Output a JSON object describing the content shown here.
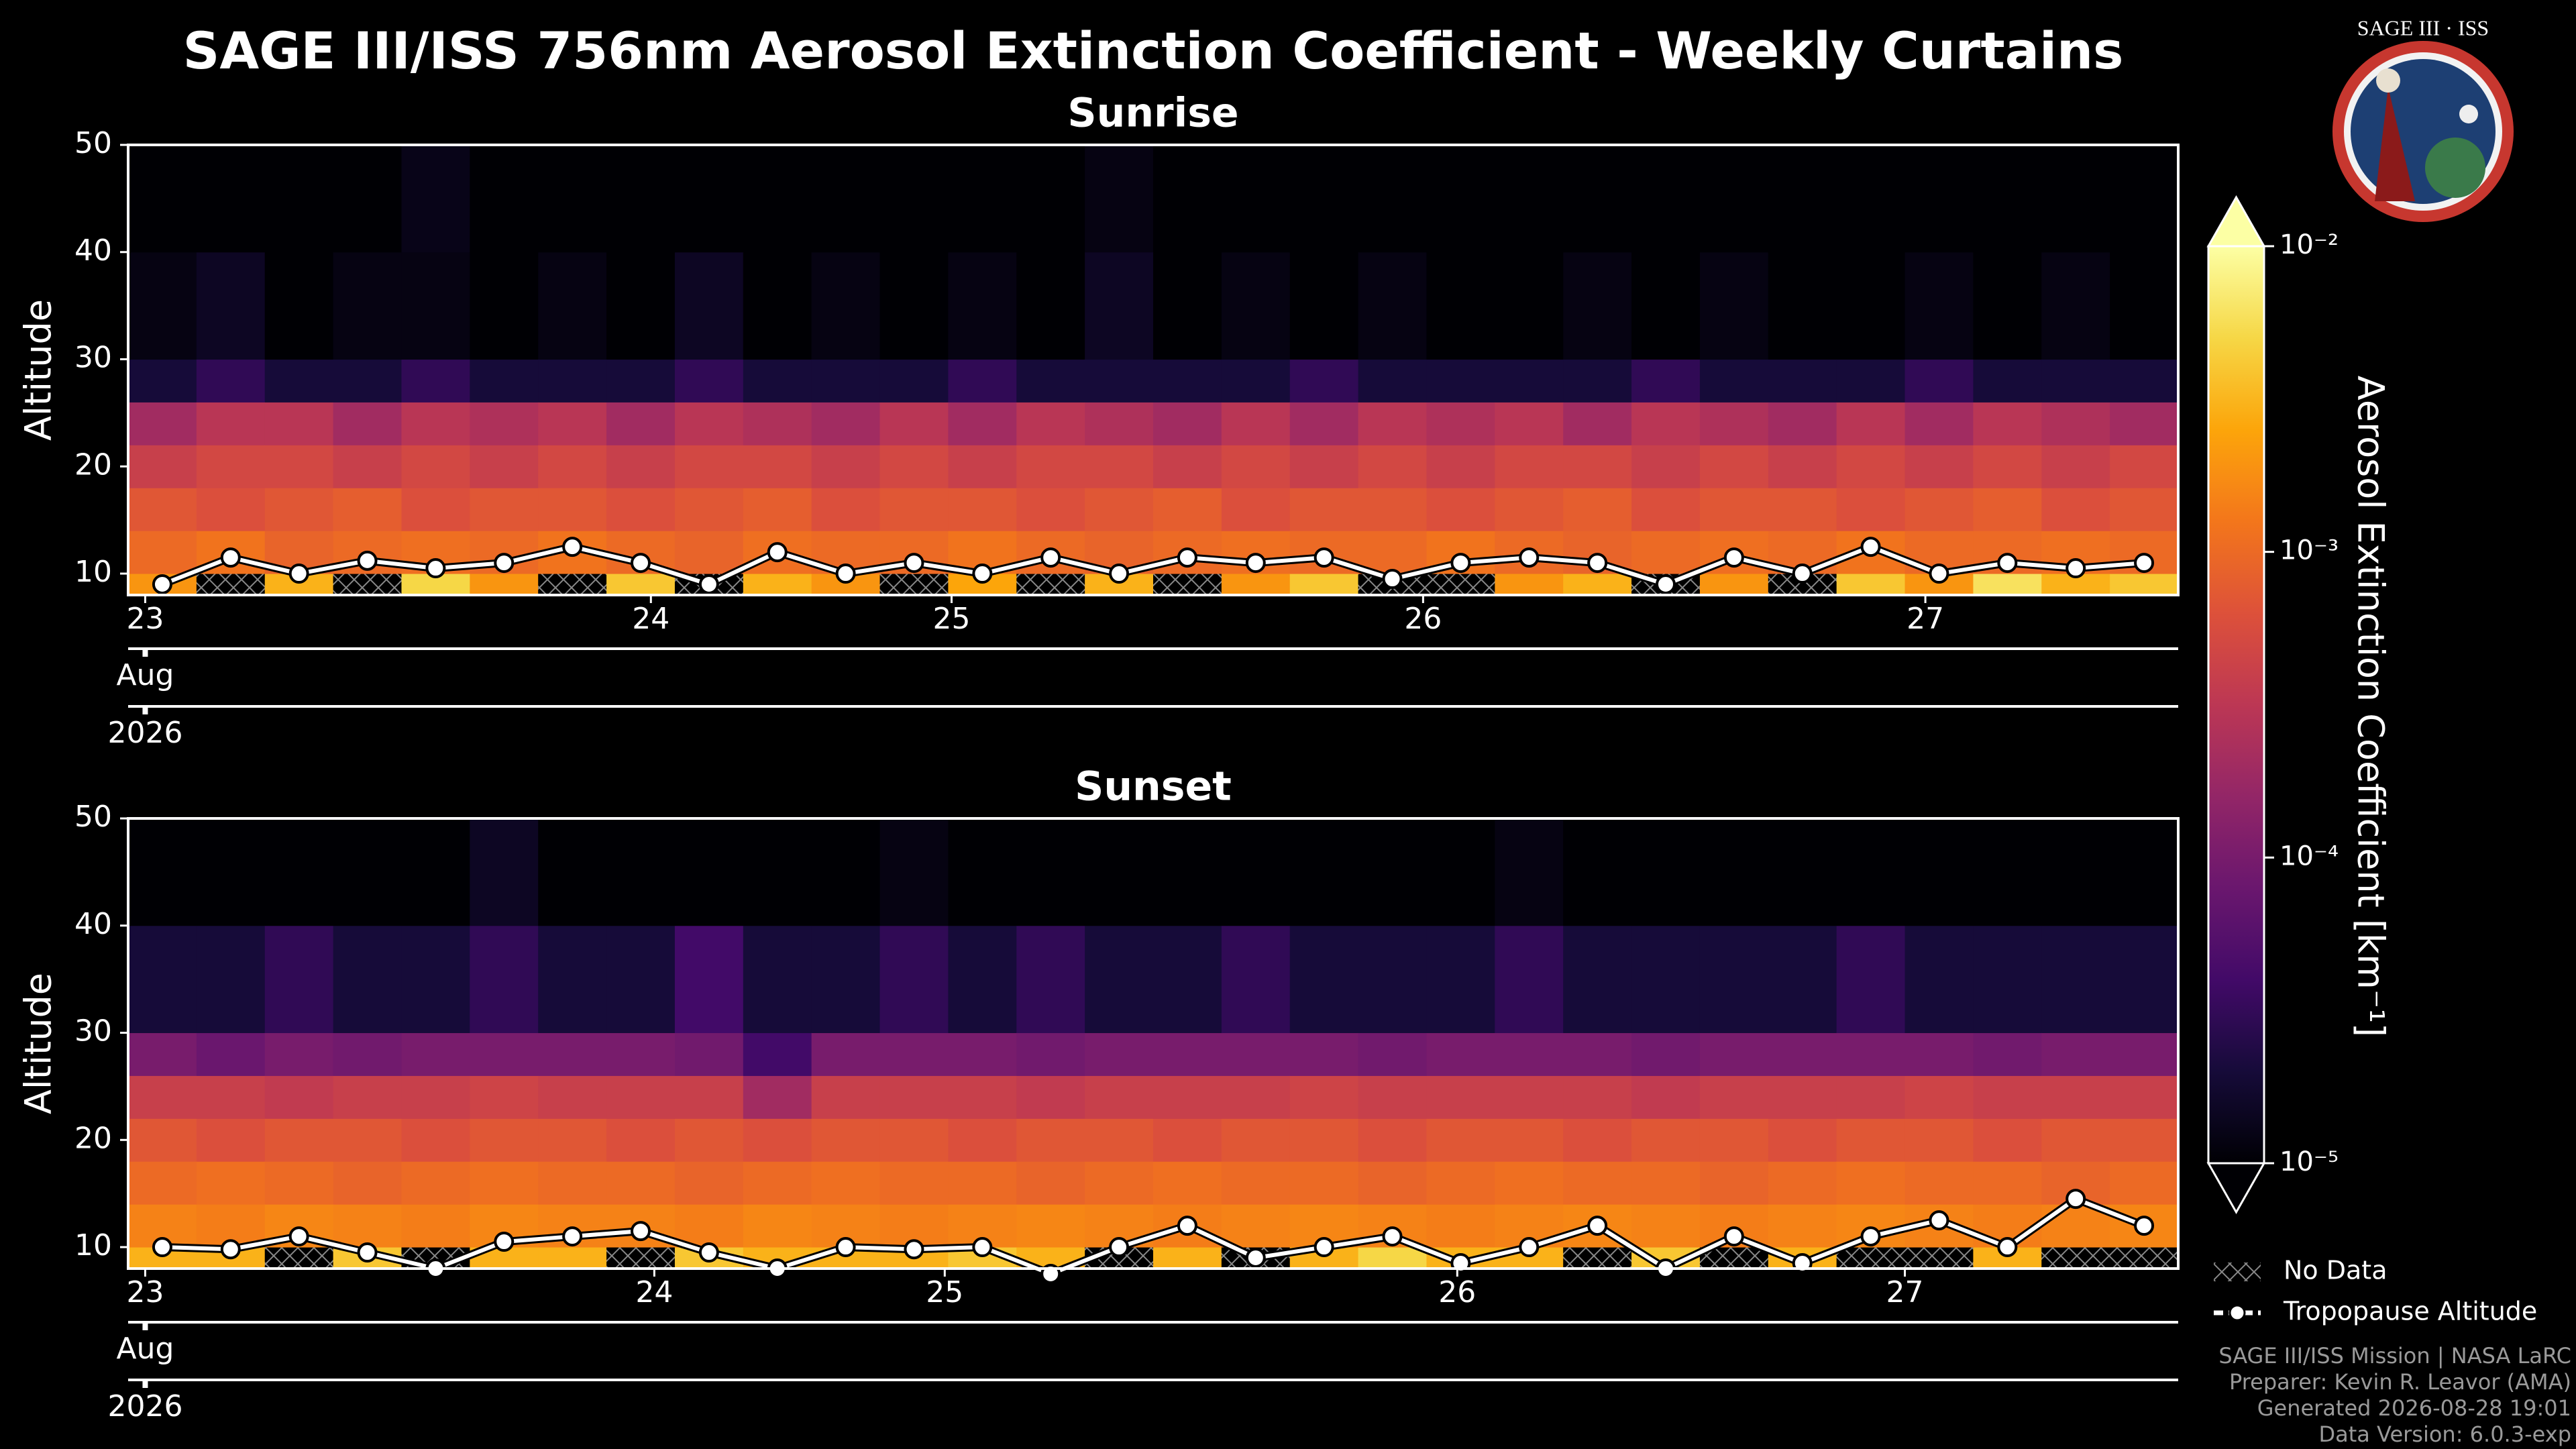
{
  "title": "SAGE III/ISS 756nm Aerosol Extinction Coefficient - Weekly Curtains",
  "logo": {
    "title": "SAGE III · ISS"
  },
  "colorbar": {
    "label": "Aerosol Extinction Coefficient [km⁻¹]",
    "clim": [
      1e-05,
      0.01
    ],
    "log": true,
    "ticks": [
      {
        "value": 0.01,
        "label": "10⁻²"
      },
      {
        "value": 0.001,
        "label": "10⁻³"
      },
      {
        "value": 0.0001,
        "label": "10⁻⁴"
      },
      {
        "value": 1e-05,
        "label": "10⁻⁵"
      }
    ]
  },
  "no_data_label": "No Data",
  "footer": [
    "SAGE III/ISS Mission | NASA LaRC",
    "Preparer: Kevin R. Leavor (AMA)",
    "Generated 2026-08-28 19:01",
    "Data Version: 6.0.3-exp"
  ],
  "chart_data": [
    {
      "type": "heatmap",
      "title": "Sunrise",
      "ylabel": "Altitude",
      "ylim": [
        8,
        50
      ],
      "yticks": [
        10,
        20,
        30,
        40,
        50
      ],
      "y_edges": [
        8,
        10,
        14,
        18,
        22,
        26,
        30,
        40,
        50
      ],
      "xlim": [
        0,
        30
      ],
      "xticks": [
        {
          "value": 0.25,
          "label": "23"
        },
        {
          "value": 7.65,
          "label": "24"
        },
        {
          "value": 12.05,
          "label": "25"
        },
        {
          "value": 18.95,
          "label": "26"
        },
        {
          "value": 26.3,
          "label": "27"
        }
      ],
      "month_label": "Aug",
      "year_label": "2026",
      "z": [
        [
          0.002,
          0.001,
          0.0007,
          0.0004,
          0.0002,
          2e-05,
          1.2e-05,
          1e-05
        ],
        [
          null,
          0.0012,
          0.0006,
          0.0005,
          0.0003,
          3e-05,
          1.5e-05,
          1e-05
        ],
        [
          0.003,
          0.0009,
          0.0007,
          0.0005,
          0.0003,
          2e-05,
          1e-05,
          1e-05
        ],
        [
          null,
          0.001,
          0.0008,
          0.0004,
          0.0002,
          2e-05,
          1.2e-05,
          1e-05
        ],
        [
          0.005,
          0.0011,
          0.0006,
          0.0005,
          0.0003,
          3e-05,
          1.2e-05,
          1.3e-05
        ],
        [
          0.002,
          0.001,
          0.0007,
          0.0004,
          0.00025,
          2e-05,
          1e-05,
          1e-05
        ],
        [
          null,
          0.0012,
          0.0007,
          0.0005,
          0.0003,
          2e-05,
          1.2e-05,
          1e-05
        ],
        [
          0.004,
          0.001,
          0.0006,
          0.0004,
          0.0002,
          2e-05,
          1e-05,
          1e-05
        ],
        [
          null,
          0.0009,
          0.0007,
          0.0005,
          0.0003,
          3e-05,
          1.5e-05,
          1e-05
        ],
        [
          0.003,
          0.0011,
          0.0008,
          0.0005,
          0.00025,
          2e-05,
          1e-05,
          1e-05
        ],
        [
          0.002,
          0.001,
          0.0006,
          0.0004,
          0.0002,
          2e-05,
          1.2e-05,
          1e-05
        ],
        [
          null,
          0.001,
          0.0007,
          0.0005,
          0.0003,
          2e-05,
          1e-05,
          1e-05
        ],
        [
          0.0025,
          0.0012,
          0.0007,
          0.0004,
          0.0002,
          3e-05,
          1.2e-05,
          1e-05
        ],
        [
          null,
          0.001,
          0.0006,
          0.0005,
          0.0003,
          2e-05,
          1e-05,
          1e-05
        ],
        [
          0.003,
          0.0009,
          0.0007,
          0.0005,
          0.00025,
          2e-05,
          1.5e-05,
          1.2e-05
        ],
        [
          null,
          0.001,
          0.0008,
          0.0004,
          0.0002,
          2e-05,
          1e-05,
          1e-05
        ],
        [
          0.002,
          0.0011,
          0.0006,
          0.0005,
          0.0003,
          2e-05,
          1.2e-05,
          1e-05
        ],
        [
          0.004,
          0.001,
          0.0007,
          0.0004,
          0.0002,
          3e-05,
          1e-05,
          1e-05
        ],
        [
          null,
          0.001,
          0.0007,
          0.0005,
          0.0003,
          2e-05,
          1.2e-05,
          1e-05
        ],
        [
          null,
          0.0012,
          0.0006,
          0.0004,
          0.00025,
          2e-05,
          1e-05,
          1e-05
        ],
        [
          0.002,
          0.001,
          0.0007,
          0.0005,
          0.0003,
          2e-05,
          1e-05,
          1e-05
        ],
        [
          0.003,
          0.0009,
          0.0008,
          0.0005,
          0.0002,
          2e-05,
          1.2e-05,
          1e-05
        ],
        [
          null,
          0.001,
          0.0006,
          0.0004,
          0.0003,
          3e-05,
          1e-05,
          1e-05
        ],
        [
          0.002,
          0.0011,
          0.0007,
          0.0005,
          0.00025,
          2e-05,
          1.2e-05,
          1e-05
        ],
        [
          null,
          0.001,
          0.0007,
          0.0004,
          0.0002,
          2e-05,
          1e-05,
          1e-05
        ],
        [
          0.004,
          0.0012,
          0.0006,
          0.0005,
          0.0003,
          2e-05,
          1e-05,
          1e-05
        ],
        [
          0.002,
          0.001,
          0.0007,
          0.0004,
          0.0002,
          3e-05,
          1.2e-05,
          1e-05
        ],
        [
          0.006,
          0.001,
          0.0008,
          0.0005,
          0.0003,
          2e-05,
          1e-05,
          1e-05
        ],
        [
          0.003,
          0.0011,
          0.0006,
          0.0004,
          0.00025,
          2e-05,
          1.2e-05,
          1e-05
        ],
        [
          0.004,
          0.001,
          0.0007,
          0.0005,
          0.0002,
          2e-05,
          1e-05,
          1e-05
        ]
      ],
      "series": [
        {
          "name": "Tropopause Altitude",
          "color": "#ffffff",
          "values": [
            9,
            11.5,
            10,
            11.2,
            10.5,
            11,
            12.5,
            11,
            9,
            12,
            10,
            11,
            10,
            11.5,
            10,
            11.5,
            11,
            11.5,
            9.5,
            11,
            11.5,
            11,
            9,
            11.5,
            10,
            12.5,
            10,
            11,
            10.5,
            11
          ]
        }
      ]
    },
    {
      "type": "heatmap",
      "title": "Sunset",
      "ylabel": "Altitude",
      "ylim": [
        8,
        50
      ],
      "yticks": [
        10,
        20,
        30,
        40,
        50
      ],
      "y_edges": [
        8,
        10,
        14,
        18,
        22,
        26,
        30,
        40,
        50
      ],
      "xlim": [
        0,
        30
      ],
      "xticks": [
        {
          "value": 0.25,
          "label": "23"
        },
        {
          "value": 7.7,
          "label": "24"
        },
        {
          "value": 11.95,
          "label": "25"
        },
        {
          "value": 19.45,
          "label": "26"
        },
        {
          "value": 26.0,
          "label": "27"
        }
      ],
      "month_label": "Aug",
      "year_label": "2026",
      "z": [
        [
          0.003,
          0.0015,
          0.001,
          0.0007,
          0.0004,
          0.0001,
          2e-05,
          1e-05
        ],
        [
          0.003,
          0.0014,
          0.0011,
          0.0006,
          0.0004,
          8e-05,
          2e-05,
          1e-05
        ],
        [
          null,
          0.0016,
          0.001,
          0.0007,
          0.00035,
          0.0001,
          3e-05,
          1e-05
        ],
        [
          0.004,
          0.0015,
          0.0009,
          0.0007,
          0.0004,
          9e-05,
          2e-05,
          1e-05
        ],
        [
          null,
          0.0014,
          0.001,
          0.0006,
          0.0004,
          0.0001,
          2e-05,
          1e-05
        ],
        [
          0.003,
          0.0016,
          0.0011,
          0.0007,
          0.00045,
          0.0001,
          3e-05,
          1.5e-05
        ],
        [
          0.003,
          0.0015,
          0.001,
          0.0007,
          0.0004,
          0.0001,
          2e-05,
          1e-05
        ],
        [
          null,
          0.0015,
          0.001,
          0.0006,
          0.0004,
          0.0001,
          2e-05,
          1e-05
        ],
        [
          0.004,
          0.0014,
          0.0009,
          0.0007,
          0.0004,
          9e-05,
          4e-05,
          1e-05
        ],
        [
          0.003,
          0.0016,
          0.001,
          0.0006,
          0.0002,
          4e-05,
          2e-05,
          1e-05
        ],
        [
          0.003,
          0.0015,
          0.0011,
          0.0007,
          0.0004,
          0.0001,
          2e-05,
          1e-05
        ],
        [
          0.003,
          0.0014,
          0.001,
          0.0007,
          0.0004,
          0.0001,
          3e-05,
          1.2e-05
        ],
        [
          0.004,
          0.0015,
          0.001,
          0.0006,
          0.0004,
          0.0001,
          2e-05,
          1e-05
        ],
        [
          0.003,
          0.0016,
          0.0009,
          0.0007,
          0.00035,
          9e-05,
          3e-05,
          1e-05
        ],
        [
          null,
          0.0015,
          0.001,
          0.0007,
          0.0004,
          0.0001,
          2e-05,
          1e-05
        ],
        [
          0.003,
          0.0014,
          0.0011,
          0.0006,
          0.0004,
          0.0001,
          2e-05,
          1e-05
        ],
        [
          null,
          0.0015,
          0.001,
          0.0007,
          0.0004,
          0.0001,
          3e-05,
          1e-05
        ],
        [
          0.003,
          0.0016,
          0.001,
          0.0007,
          0.00045,
          0.0001,
          2e-05,
          1e-05
        ],
        [
          0.005,
          0.0015,
          0.0009,
          0.0006,
          0.0004,
          9e-05,
          2e-05,
          1e-05
        ],
        [
          0.003,
          0.0014,
          0.001,
          0.0007,
          0.0004,
          0.0001,
          2e-05,
          1e-05
        ],
        [
          0.003,
          0.0015,
          0.0011,
          0.0007,
          0.0004,
          0.0001,
          3e-05,
          1.2e-05
        ],
        [
          null,
          0.0016,
          0.001,
          0.0006,
          0.0004,
          0.0001,
          2e-05,
          1e-05
        ],
        [
          0.004,
          0.0015,
          0.001,
          0.0007,
          0.00035,
          9e-05,
          2e-05,
          1e-05
        ],
        [
          null,
          0.0014,
          0.0009,
          0.0007,
          0.0004,
          0.0001,
          2e-05,
          1e-05
        ],
        [
          0.003,
          0.0015,
          0.001,
          0.0006,
          0.0004,
          0.0001,
          2e-05,
          1e-05
        ],
        [
          null,
          0.0016,
          0.0011,
          0.0007,
          0.0004,
          0.0001,
          3e-05,
          1e-05
        ],
        [
          null,
          0.0015,
          0.001,
          0.0007,
          0.00045,
          0.0001,
          2e-05,
          1e-05
        ],
        [
          0.003,
          0.0014,
          0.001,
          0.0006,
          0.0004,
          9e-05,
          2e-05,
          1e-05
        ],
        [
          null,
          0.0015,
          0.0009,
          0.0007,
          0.0004,
          0.0001,
          2e-05,
          1e-05
        ],
        [
          null,
          0.0016,
          0.001,
          0.0007,
          0.0004,
          0.0001,
          2e-05,
          1e-05
        ]
      ],
      "series": [
        {
          "color": "#ffffff",
          "values": [
            10,
            9.8,
            11,
            9.5,
            8,
            10.5,
            11,
            11.5,
            9.5,
            8,
            10,
            9.8,
            10,
            7.5,
            10,
            12,
            9,
            10,
            11,
            8.5,
            10,
            12,
            8,
            11,
            8.5,
            11,
            12.5,
            10,
            14.5,
            12
          ]
        }
      ]
    }
  ]
}
